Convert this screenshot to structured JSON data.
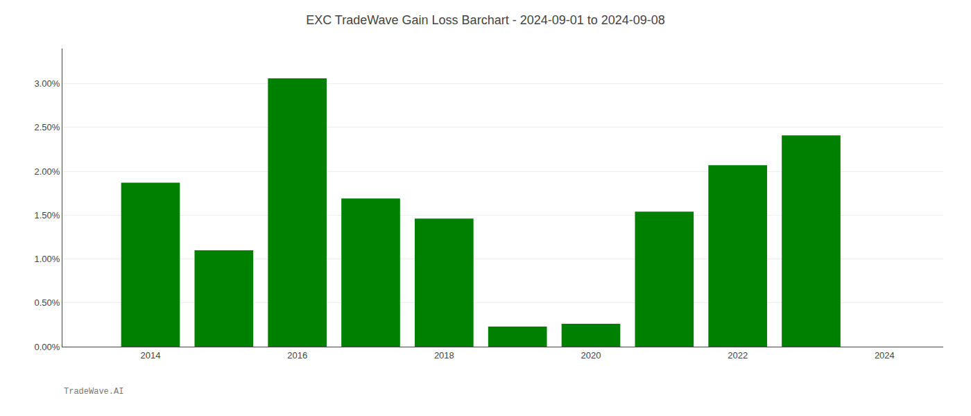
{
  "chart_data": {
    "type": "bar",
    "title": "EXC TradeWave Gain Loss Barchart - 2024-09-01 to 2024-09-08",
    "x": [
      2014,
      2015,
      2016,
      2017,
      2018,
      2019,
      2020,
      2021,
      2022,
      2023
    ],
    "values": [
      0.0187,
      0.011,
      0.0306,
      0.0169,
      0.0146,
      0.0023,
      0.0026,
      0.0154,
      0.0207,
      0.0241
    ],
    "color": "#008000",
    "xlim": [
      2012.8,
      2024.8
    ],
    "xticks": [
      2014,
      2016,
      2018,
      2020,
      2022,
      2024
    ],
    "ylim": [
      0,
      0.034
    ],
    "yticks": [
      {
        "value": 0.0,
        "label": "0.00%"
      },
      {
        "value": 0.005,
        "label": "0.50%"
      },
      {
        "value": 0.01,
        "label": "1.00%"
      },
      {
        "value": 0.015,
        "label": "1.50%"
      },
      {
        "value": 0.02,
        "label": "2.00%"
      },
      {
        "value": 0.025,
        "label": "2.50%"
      },
      {
        "value": 0.03,
        "label": "3.00%"
      }
    ],
    "grid": true,
    "annotations": [
      {
        "text": "TradeWave.AI"
      }
    ]
  }
}
